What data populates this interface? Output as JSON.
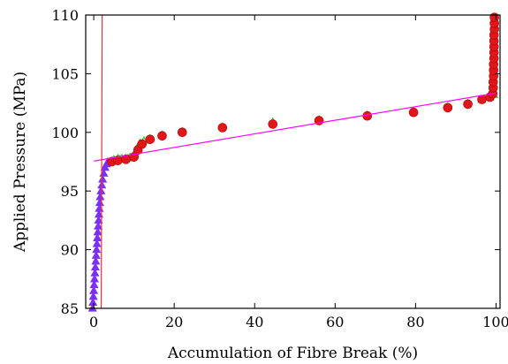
{
  "chart_data": {
    "type": "scatter",
    "xlabel": "Accumulation of Fibre Break (%)",
    "ylabel": "Applied Pressure (MPa)",
    "xlim": [
      -2,
      101
    ],
    "ylim": [
      85,
      110
    ],
    "x_ticks": [
      0,
      20,
      40,
      60,
      80,
      100
    ],
    "y_ticks": [
      85,
      90,
      95,
      100,
      105,
      110
    ],
    "grid": false,
    "colors": {
      "purple": "#7b2ff7",
      "green": "#2ecc2e",
      "red": "#e0161b",
      "magenta": "#ff00ff",
      "red_line": "#e8303a"
    },
    "series": [
      {
        "marker": "triangle-up",
        "color": "purple",
        "points": [
          [
            -0.3,
            85.0
          ],
          [
            -0.2,
            85.5
          ],
          [
            -0.1,
            86.0
          ],
          [
            0.0,
            86.5
          ],
          [
            0.1,
            87.0
          ],
          [
            0.2,
            87.5
          ],
          [
            0.3,
            88.0
          ],
          [
            0.4,
            88.5
          ],
          [
            0.5,
            89.0
          ],
          [
            0.6,
            89.5
          ],
          [
            0.7,
            90.0
          ],
          [
            0.8,
            90.5
          ],
          [
            0.9,
            91.0
          ],
          [
            1.0,
            91.5
          ],
          [
            1.1,
            92.0
          ],
          [
            1.2,
            92.5
          ],
          [
            1.3,
            93.0
          ],
          [
            1.4,
            93.5
          ],
          [
            1.5,
            94.0
          ],
          [
            1.6,
            94.5
          ],
          [
            1.8,
            95.0
          ],
          [
            2.0,
            95.5
          ],
          [
            2.2,
            96.0
          ],
          [
            2.5,
            96.5
          ],
          [
            2.8,
            97.0
          ],
          [
            3.2,
            97.3
          ],
          [
            3.5,
            97.5
          ]
        ]
      },
      {
        "marker": "triangle-up",
        "color": "green",
        "points": [
          [
            4.5,
            97.6
          ],
          [
            5.0,
            97.7
          ],
          [
            5.5,
            97.6
          ],
          [
            6.0,
            97.8
          ],
          [
            6.5,
            97.7
          ],
          [
            7.0,
            97.8
          ],
          [
            7.5,
            97.7
          ],
          [
            8.0,
            97.8
          ],
          [
            8.5,
            97.8
          ],
          [
            9.0,
            97.9
          ],
          [
            9.5,
            97.8
          ],
          [
            10.0,
            98.0
          ],
          [
            10.3,
            98.2
          ],
          [
            10.6,
            98.5
          ],
          [
            11.0,
            98.8
          ],
          [
            11.5,
            99.1
          ],
          [
            12.5,
            99.3
          ],
          [
            14.0,
            99.5
          ],
          [
            17.0,
            99.8
          ],
          [
            22.0,
            100.1
          ],
          [
            32.0,
            100.5
          ],
          [
            44.5,
            100.9
          ],
          [
            56.0,
            101.1
          ],
          [
            68.0,
            101.5
          ],
          [
            79.5,
            101.8
          ],
          [
            88.0,
            102.2
          ],
          [
            93.0,
            102.5
          ],
          [
            96.5,
            102.8
          ],
          [
            98.5,
            103.0
          ],
          [
            99.5,
            103.2
          ]
        ]
      },
      {
        "marker": "circle",
        "color": "red",
        "points": [
          [
            4.5,
            97.5
          ],
          [
            6.0,
            97.6
          ],
          [
            8.0,
            97.7
          ],
          [
            10.0,
            97.9
          ],
          [
            11.0,
            98.5
          ],
          [
            12.0,
            99.0
          ],
          [
            14.0,
            99.4
          ],
          [
            17.0,
            99.7
          ],
          [
            22.0,
            100.0
          ],
          [
            32.0,
            100.4
          ],
          [
            44.5,
            100.7
          ],
          [
            56.0,
            101.0
          ],
          [
            68.0,
            101.4
          ],
          [
            79.5,
            101.7
          ],
          [
            88.0,
            102.1
          ],
          [
            93.0,
            102.4
          ],
          [
            96.5,
            102.8
          ],
          [
            98.5,
            103.0
          ],
          [
            99.2,
            103.3
          ],
          [
            99.3,
            103.8
          ],
          [
            99.3,
            104.3
          ],
          [
            99.4,
            104.8
          ],
          [
            99.4,
            105.3
          ],
          [
            99.4,
            105.8
          ],
          [
            99.5,
            106.3
          ],
          [
            99.5,
            106.8
          ],
          [
            99.5,
            107.3
          ],
          [
            99.5,
            107.8
          ],
          [
            99.5,
            108.3
          ],
          [
            99.6,
            108.8
          ],
          [
            99.6,
            109.3
          ],
          [
            99.6,
            109.8
          ]
        ]
      }
    ],
    "lines": [
      {
        "color": "magenta",
        "points": [
          [
            0,
            97.55
          ],
          [
            100,
            103.35
          ]
        ]
      },
      {
        "color": "red_line",
        "points": [
          [
            1.85,
            85
          ],
          [
            2.1,
            110
          ]
        ]
      }
    ]
  }
}
